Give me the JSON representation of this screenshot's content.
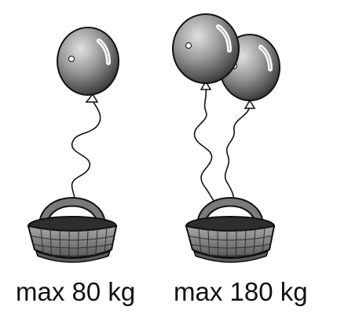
{
  "left_group": {
    "balloon_count": 1,
    "capacity_label": "max 80 kg"
  },
  "right_group": {
    "balloon_count": 2,
    "capacity_label": "max 180 kg"
  },
  "colors": {
    "balloon_dark": "#3a3a3a",
    "balloon_light": "#d8d8d8",
    "basket_fill": "#8c8c8c",
    "basket_dark": "#4a4a4a",
    "outline": "#111111"
  }
}
